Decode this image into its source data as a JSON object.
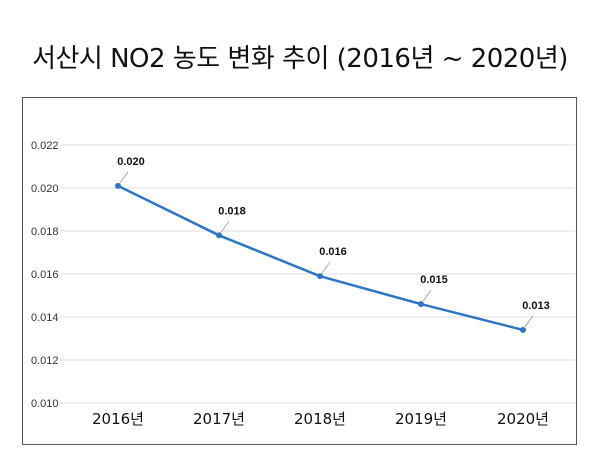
{
  "chart_data": {
    "type": "line",
    "title": "서산시 NO2 농도 변화 추이 (2016년 ~ 2020년)",
    "xlabel": "",
    "ylabel": "",
    "categories": [
      "2016년",
      "2017년",
      "2018년",
      "2019년",
      "2020년"
    ],
    "series": [
      {
        "values": [
          0.0201,
          0.0178,
          0.0159,
          0.0146,
          0.0134
        ],
        "data_labels": [
          "0.020",
          "0.018",
          "0.016",
          "0.015",
          "0.013"
        ],
        "color": "#2e75c4"
      }
    ],
    "ylim": [
      0.01,
      0.022
    ],
    "yticks": [
      "0.010",
      "0.012",
      "0.014",
      "0.016",
      "0.018",
      "0.020",
      "0.022"
    ],
    "grid": true,
    "legend": "none"
  }
}
